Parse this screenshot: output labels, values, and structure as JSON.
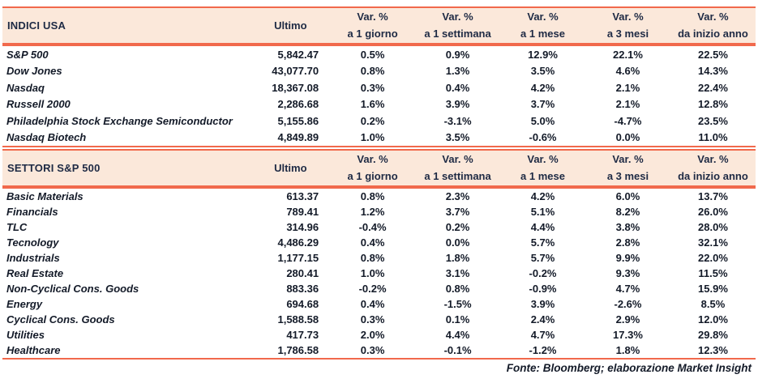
{
  "columns": {
    "ultimo_label": "Ultimo",
    "var_label": "Var. %",
    "periods": [
      "a 1 giorno",
      "a 1 settimana",
      "a 1 mese",
      "a 3 mesi",
      "da inizio anno"
    ]
  },
  "tables": [
    {
      "title": "INDICI USA",
      "rows": [
        {
          "name": "S&P 500",
          "ultimo": "5,842.47",
          "vars": [
            "0.5%",
            "0.9%",
            "12.9%",
            "22.1%",
            "22.5%"
          ]
        },
        {
          "name": "Dow Jones",
          "ultimo": "43,077.70",
          "vars": [
            "0.8%",
            "1.3%",
            "3.5%",
            "4.6%",
            "14.3%"
          ]
        },
        {
          "name": "Nasdaq",
          "ultimo": "18,367.08",
          "vars": [
            "0.3%",
            "0.4%",
            "4.2%",
            "2.1%",
            "22.4%"
          ]
        },
        {
          "name": "Russell 2000",
          "ultimo": "2,286.68",
          "vars": [
            "1.6%",
            "3.9%",
            "3.7%",
            "2.1%",
            "12.8%"
          ]
        },
        {
          "name": "Philadelphia Stock Exchange Semiconductor",
          "ultimo": "5,155.86",
          "vars": [
            "0.2%",
            "-3.1%",
            "5.0%",
            "-4.7%",
            "23.5%"
          ]
        },
        {
          "name": "Nasdaq Biotech",
          "ultimo": "4,849.89",
          "vars": [
            "1.0%",
            "3.5%",
            "-0.6%",
            "0.0%",
            "11.0%"
          ]
        }
      ]
    },
    {
      "title": "SETTORI S&P 500",
      "rows": [
        {
          "name": "Basic Materials",
          "ultimo": "613.37",
          "vars": [
            "0.8%",
            "2.3%",
            "4.2%",
            "6.0%",
            "13.7%"
          ]
        },
        {
          "name": "Financials",
          "ultimo": "789.41",
          "vars": [
            "1.2%",
            "3.7%",
            "5.1%",
            "8.2%",
            "26.0%"
          ]
        },
        {
          "name": "TLC",
          "ultimo": "314.96",
          "vars": [
            "-0.4%",
            "0.2%",
            "4.4%",
            "3.8%",
            "28.0%"
          ]
        },
        {
          "name": "Tecnology",
          "ultimo": "4,486.29",
          "vars": [
            "0.4%",
            "0.0%",
            "5.7%",
            "2.8%",
            "32.1%"
          ]
        },
        {
          "name": "Industrials",
          "ultimo": "1,177.15",
          "vars": [
            "0.8%",
            "1.8%",
            "5.7%",
            "9.9%",
            "22.0%"
          ]
        },
        {
          "name": "Real Estate",
          "ultimo": "280.41",
          "vars": [
            "1.0%",
            "3.1%",
            "-0.2%",
            "9.3%",
            "11.5%"
          ]
        },
        {
          "name": "Non-Cyclical Cons. Goods",
          "ultimo": "883.36",
          "vars": [
            "-0.2%",
            "0.8%",
            "-0.9%",
            "4.7%",
            "15.9%"
          ]
        },
        {
          "name": "Energy",
          "ultimo": "694.68",
          "vars": [
            "0.4%",
            "-1.5%",
            "3.9%",
            "-2.6%",
            "8.5%"
          ]
        },
        {
          "name": "Cyclical Cons. Goods",
          "ultimo": "1,588.58",
          "vars": [
            "0.3%",
            "0.1%",
            "2.4%",
            "2.9%",
            "12.0%"
          ]
        },
        {
          "name": "Utilities",
          "ultimo": "417.73",
          "vars": [
            "2.0%",
            "4.4%",
            "4.7%",
            "17.3%",
            "29.8%"
          ]
        },
        {
          "name": "Healthcare",
          "ultimo": "1,786.58",
          "vars": [
            "0.3%",
            "-0.1%",
            "-1.2%",
            "1.8%",
            "12.3%"
          ]
        }
      ]
    }
  ],
  "footer": {
    "text": "Fonte: Bloomberg; elaborazione Market Insight"
  },
  "colors": {
    "rule": "#F1694C",
    "header_band": "#FBE8DA",
    "text": "#131A28"
  }
}
